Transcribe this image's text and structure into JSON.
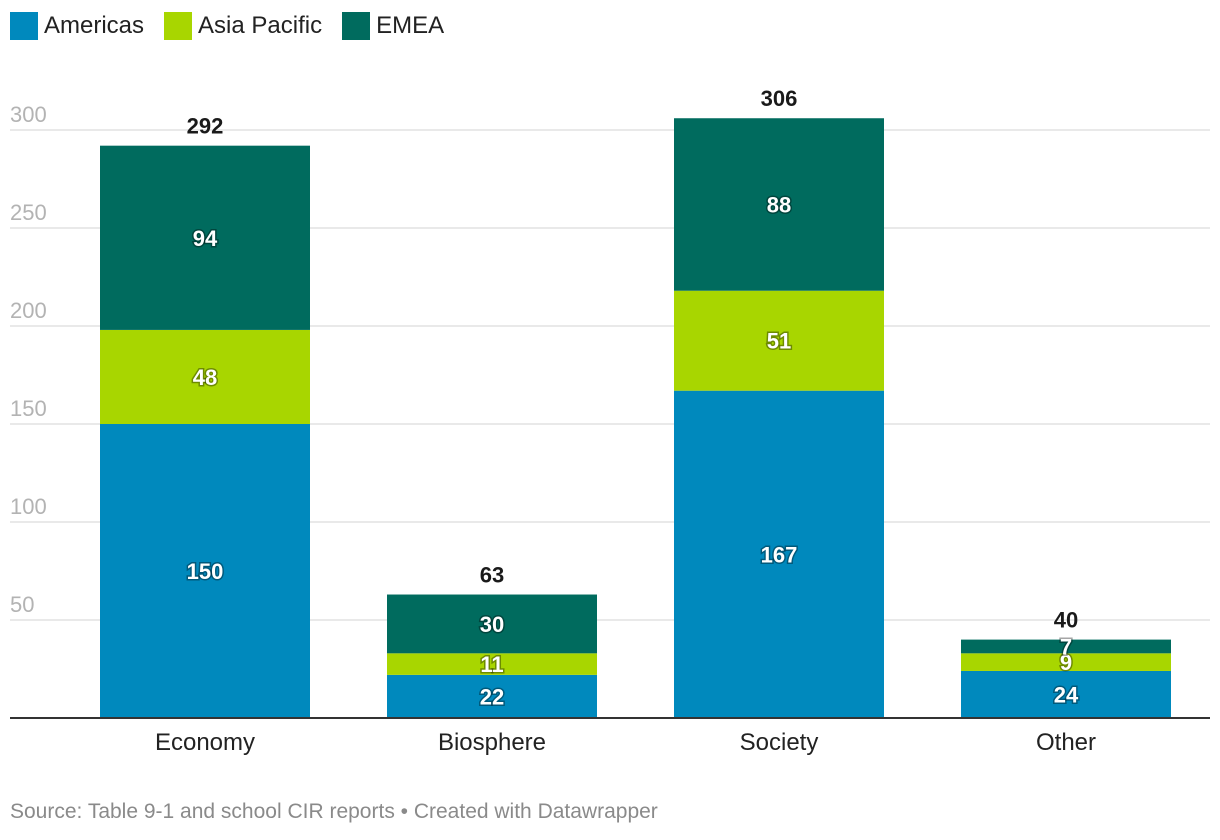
{
  "legend": [
    {
      "label": "Americas",
      "color": "#0089BD"
    },
    {
      "label": "Asia Pacific",
      "color": "#A8D600"
    },
    {
      "label": "EMEA",
      "color": "#006B5E"
    }
  ],
  "source": "Source: Table 9-1 and school CIR reports • Created with Datawrapper",
  "chart_data": {
    "type": "bar",
    "stacked": true,
    "categories": [
      "Economy",
      "Biosphere",
      "Society",
      "Other"
    ],
    "series": [
      {
        "name": "Americas",
        "color": "#0089BD",
        "values": [
          150,
          22,
          167,
          24
        ]
      },
      {
        "name": "Asia Pacific",
        "color": "#A8D600",
        "values": [
          48,
          11,
          51,
          9
        ]
      },
      {
        "name": "EMEA",
        "color": "#006B5E",
        "values": [
          94,
          30,
          88,
          7
        ]
      }
    ],
    "totals": [
      292,
      63,
      306,
      40
    ],
    "ylim": [
      0,
      300
    ],
    "yticks": [
      50,
      100,
      150,
      200,
      250,
      300
    ],
    "grid": true,
    "legend_position": "top-left"
  }
}
